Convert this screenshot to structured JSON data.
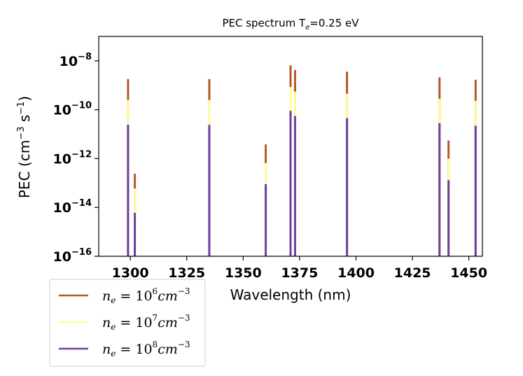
{
  "chart_data": {
    "type": "bar",
    "title": "PEC spectrum  Tₑ=0.25 eV",
    "xlabel": "Wavelength (nm)",
    "ylabel": "PEC (cm⁻³ s⁻¹)",
    "xlim": [
      1286,
      1456
    ],
    "ylim": [
      1e-16,
      1e-07
    ],
    "yscale": "log",
    "xticks": [
      "1300",
      "1325",
      "1350",
      "1375",
      "1400",
      "1425",
      "1450"
    ],
    "yticks": [
      {
        "base": "10",
        "exp": "−8"
      },
      {
        "base": "10",
        "exp": "−10"
      },
      {
        "base": "10",
        "exp": "−12"
      },
      {
        "base": "10",
        "exp": "−14"
      },
      {
        "base": "10",
        "exp": "−16"
      }
    ],
    "wavelengths": [
      1299,
      1302,
      1335,
      1360,
      1371,
      1373,
      1396,
      1437,
      1441,
      1453
    ],
    "series": [
      {
        "name": "nₑ = 10⁶ cm⁻³",
        "legend_exp": "6",
        "color": "#b5572a",
        "values": [
          1.8e-09,
          2.4e-13,
          1.8e-09,
          3.8e-12,
          6.5e-09,
          4.2e-09,
          3.6e-09,
          2.1e-09,
          5.5e-12,
          1.7e-09
        ]
      },
      {
        "name": "nₑ = 10⁷ cm⁻³",
        "legend_exp": "7",
        "color": "#ffff99",
        "values": [
          2.5e-10,
          6e-14,
          2.5e-10,
          6.5e-13,
          8.5e-10,
          5.5e-10,
          4.5e-10,
          2.8e-10,
          1e-12,
          2.3e-10
        ]
      },
      {
        "name": "nₑ = 10⁸ cm⁻³",
        "legend_exp": "8",
        "color": "#6f3f9e",
        "values": [
          2.4e-11,
          6e-15,
          2.4e-11,
          9e-14,
          9e-11,
          5.5e-11,
          4.5e-11,
          2.8e-11,
          1.3e-13,
          2.2e-11
        ]
      }
    ],
    "legend_position": "lower-left",
    "grid": false
  }
}
